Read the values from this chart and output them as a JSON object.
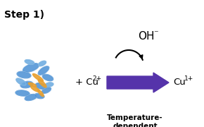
{
  "title": "Step 1)",
  "background_color": "#ffffff",
  "arrow_color": "#5533aa",
  "text_color": "#000000",
  "plus_cu2": "+ Cu",
  "cu2_sup": "2+",
  "cu1_text": "Cu",
  "cu1_sup": "1+",
  "oh_text": "OH",
  "oh_sup": "⁻",
  "reaction_label": "Temperature-\ndependent\nreaction",
  "title_fontsize": 10,
  "main_fontsize": 9.5,
  "label_fontsize": 7.5
}
